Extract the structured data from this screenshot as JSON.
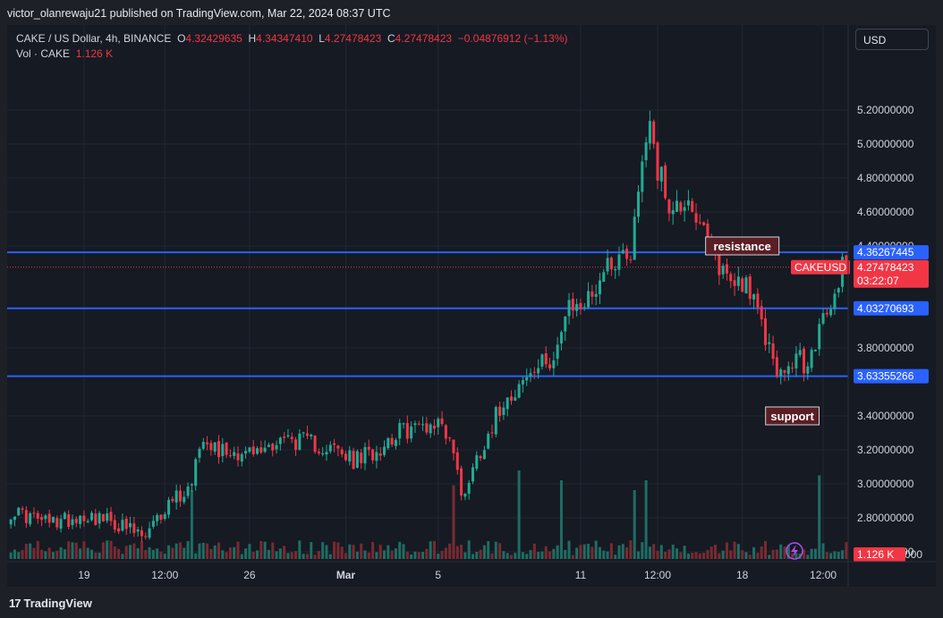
{
  "header": {
    "publisher_text": "victor_olanrewaju21 published on TradingView.com, Mar 22, 2024 08:37 UTC"
  },
  "legend": {
    "symbol": "CAKE / US Dollar, 4h, BINANCE",
    "o_label": "O",
    "o_value": "4.32429635",
    "h_label": "H",
    "h_value": "4.34347410",
    "l_label": "L",
    "l_value": "4.27478423",
    "c_label": "C",
    "c_value": "4.27478423",
    "change": "−0.04876912 (−1.13%)",
    "vol_label": "Vol · CAKE",
    "vol_value": "1.126 K"
  },
  "currency_button": "USD",
  "footer": {
    "brand": "TradingView"
  },
  "colors": {
    "up": "#22ab94",
    "down": "#f23645",
    "level_line": "#2962ff",
    "background": "#151a23"
  },
  "chart_data": {
    "type": "candlestick",
    "title": "CAKE / US Dollar, 4h, BINANCE",
    "ylim": [
      2.5,
      5.3
    ],
    "y_ticks": [
      "5.20000000",
      "5.00000000",
      "4.80000000",
      "4.60000000",
      "4.40000000",
      "3.80000000",
      "3.40000000",
      "3.20000000",
      "3.00000000",
      "2.80000000",
      "2.60000000"
    ],
    "y_tick_values": [
      5.2,
      5.0,
      4.8,
      4.6,
      4.4,
      3.8,
      3.4,
      3.2,
      3.0,
      2.8,
      2.6
    ],
    "x_ticks": [
      "19",
      "12:00",
      "26",
      "Mar",
      "5",
      "11",
      "12:00",
      "18",
      "12:00"
    ],
    "x_tick_index": [
      19,
      40,
      62,
      87,
      111,
      148,
      168,
      190,
      211
    ],
    "candle_count": 218,
    "close_anchors": [
      [
        0,
        2.84
      ],
      [
        10,
        2.77
      ],
      [
        20,
        2.82
      ],
      [
        28,
        2.76
      ],
      [
        35,
        2.68
      ],
      [
        42,
        2.92
      ],
      [
        46,
        2.96
      ],
      [
        50,
        3.3
      ],
      [
        54,
        3.2
      ],
      [
        64,
        3.18
      ],
      [
        70,
        3.27
      ],
      [
        78,
        3.24
      ],
      [
        84,
        3.2
      ],
      [
        89,
        3.13
      ],
      [
        95,
        3.2
      ],
      [
        100,
        3.3
      ],
      [
        108,
        3.35
      ],
      [
        112,
        3.36
      ],
      [
        115,
        3.2
      ],
      [
        117,
        2.92
      ],
      [
        121,
        3.15
      ],
      [
        128,
        3.5
      ],
      [
        134,
        3.62
      ],
      [
        141,
        3.76
      ],
      [
        145,
        4.02
      ],
      [
        150,
        4.08
      ],
      [
        155,
        4.3
      ],
      [
        161,
        4.38
      ],
      [
        164,
        4.9
      ],
      [
        166,
        5.18
      ],
      [
        168,
        4.85
      ],
      [
        172,
        4.6
      ],
      [
        176,
        4.7
      ],
      [
        179,
        4.5
      ],
      [
        183,
        4.32
      ],
      [
        187,
        4.2
      ],
      [
        191,
        4.2
      ],
      [
        195,
        3.92
      ],
      [
        198,
        3.74
      ],
      [
        201,
        3.6
      ],
      [
        204,
        3.77
      ],
      [
        207,
        3.66
      ],
      [
        209,
        3.85
      ],
      [
        212,
        4.0
      ],
      [
        214,
        4.08
      ],
      [
        216,
        4.32
      ],
      [
        217,
        4.27
      ]
    ],
    "volume_spikes": [
      [
        47,
        1.4
      ],
      [
        115,
        1.5
      ],
      [
        132,
        1.8
      ],
      [
        143,
        1.6
      ],
      [
        162,
        1.4
      ],
      [
        165,
        1.6
      ],
      [
        210,
        1.7
      ]
    ],
    "levels": [
      {
        "name": "resistance",
        "value": 4.36267445,
        "label": "4.36267445"
      },
      {
        "name": "middle",
        "value": 4.03270693,
        "label": "4.03270693"
      },
      {
        "name": "support",
        "value": 3.63355266,
        "label": "3.63355266"
      }
    ],
    "annotations": [
      {
        "text": "resistance",
        "index": 190,
        "value": 4.4
      },
      {
        "text": "support",
        "index": 203,
        "value": 3.4
      }
    ],
    "last_price": {
      "value": 4.27478423,
      "symbol": "CAKEUSD",
      "price_label": "4.27478423",
      "countdown": "03:22:07"
    },
    "volume_label": "1.126 K",
    "volume_axis_tail": "000"
  }
}
